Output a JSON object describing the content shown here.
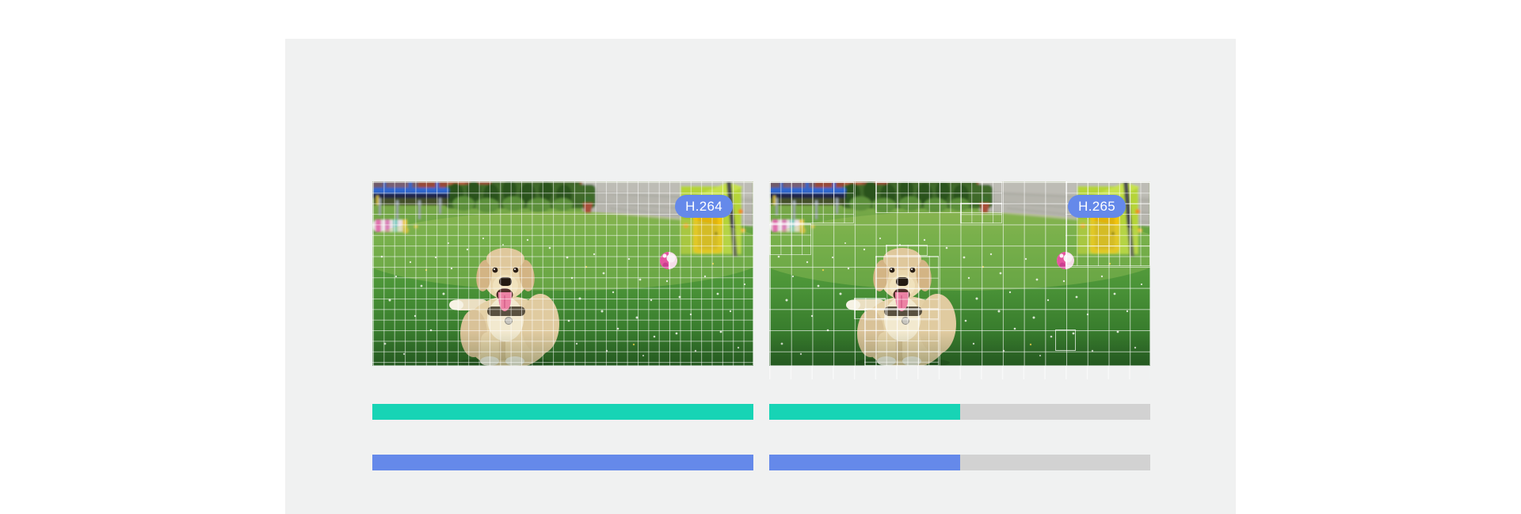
{
  "colors": {
    "page_bg": "#ffffff",
    "panel_bg": "#f0f1f1",
    "badge_bg": "#6589ea",
    "badge_text": "#ffffff",
    "bar_teal": "#17d4b5",
    "bar_blue": "#6589ea",
    "bar_track": "#d2d2d2"
  },
  "comparison": {
    "left": {
      "badge_label": "H.264",
      "overlay": "uniform-fine-macroblock-grid",
      "bars": {
        "teal_fill_pct": 100,
        "blue_fill_pct": 100
      }
    },
    "right": {
      "badge_label": "H.265",
      "overlay": "variable-size-coding-block-grid",
      "bars": {
        "teal_fill_pct": 50,
        "blue_fill_pct": 50
      }
    },
    "photo_description": "Cream labrador retriever running toward the camera on a green backyard lawn; behind it a trampoline, hedge and concrete wall, a lime-green playhouse with a yellow door and a pink ball at right"
  }
}
